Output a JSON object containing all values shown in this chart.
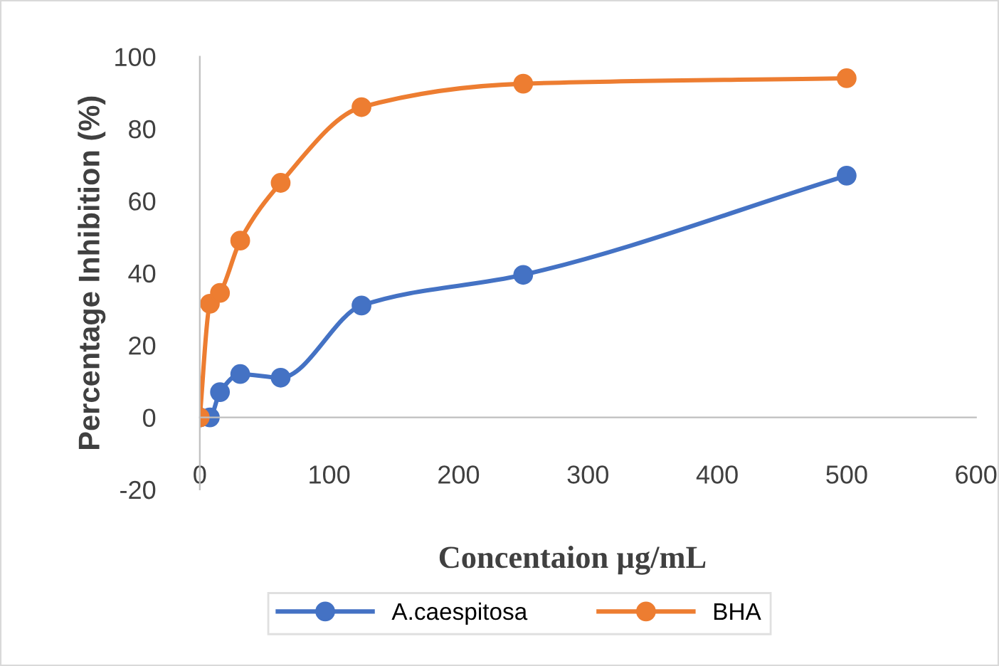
{
  "chart_data": {
    "type": "line",
    "xlabel": "Concentaion µg/mL",
    "ylabel": "Percentage Inhibition (%)",
    "xlim": [
      0,
      600
    ],
    "xticks": [
      0,
      100,
      200,
      300,
      400,
      500,
      600
    ],
    "ylim": [
      -20,
      100
    ],
    "yticks": [
      -20,
      0,
      20,
      40,
      60,
      80,
      100
    ],
    "grid": false,
    "legend": "bottom",
    "marker": "circle",
    "line_style": "solid",
    "series": [
      {
        "name": "A.caespitosa",
        "color": "#4472c4",
        "x": [
          0,
          7.8,
          15.6,
          31.25,
          62.5,
          125,
          250,
          500
        ],
        "values": [
          0,
          0,
          7,
          12,
          11,
          31,
          39.5,
          67
        ]
      },
      {
        "name": "BHA",
        "color": "#ed7d31",
        "x": [
          0,
          7.8,
          15.6,
          31.25,
          62.5,
          125,
          250,
          500
        ],
        "values": [
          0,
          31.5,
          34.5,
          49,
          65,
          86,
          92.5,
          94
        ]
      }
    ]
  }
}
